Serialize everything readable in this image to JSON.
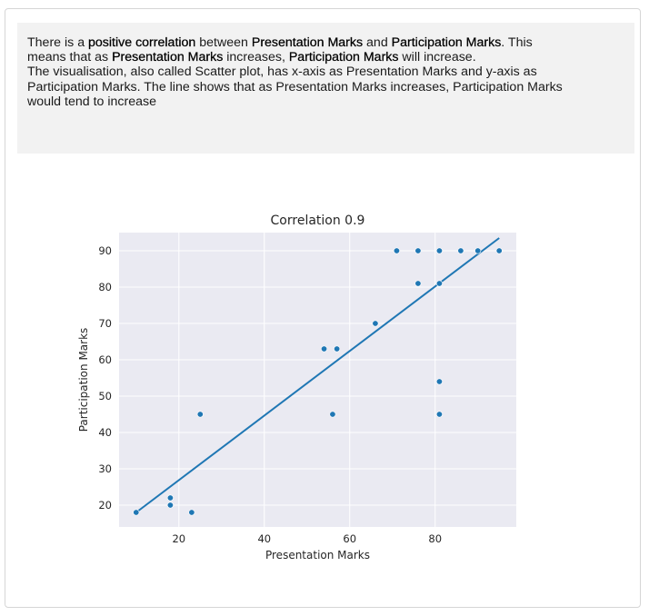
{
  "summary": {
    "line1": {
      "p1": "There is a ",
      "b1": "positive correlation",
      "p2": " between ",
      "b2": "Presentation Marks",
      "p3": " and ",
      "b3": "Participation Marks",
      "p4": ". This"
    },
    "line2": {
      "p1": "means that as ",
      "b1": "Presentation Marks",
      "p2": " increases, ",
      "b2": "Participation Marks",
      "p3": " will increase."
    },
    "line3": "The visualisation, also called Scatter plot, has x-axis as Presentation Marks and y-axis as",
    "line4": "Participation Marks. The line shows that as Presentation Marks increases, Participation Marks",
    "line5": "would tend to increase"
  },
  "colors": {
    "plot_background": "#eaeaf2",
    "gridline": "#ffffff",
    "marker": "#1f77b4",
    "trend_line": "#1f77b4",
    "text": "#262626"
  },
  "chart_data": {
    "type": "scatter",
    "title": "Correlation 0.9",
    "xlabel": "Presentation Marks",
    "ylabel": "Participation Marks",
    "xlim": [
      6,
      99
    ],
    "ylim": [
      14,
      95
    ],
    "xticks": [
      20,
      40,
      60,
      80
    ],
    "yticks": [
      20,
      30,
      40,
      50,
      60,
      70,
      80,
      90
    ],
    "grid": true,
    "points": [
      {
        "x": 10,
        "y": 18
      },
      {
        "x": 18,
        "y": 22
      },
      {
        "x": 18,
        "y": 20
      },
      {
        "x": 23,
        "y": 18
      },
      {
        "x": 25,
        "y": 45
      },
      {
        "x": 54,
        "y": 63
      },
      {
        "x": 56,
        "y": 45
      },
      {
        "x": 57,
        "y": 63
      },
      {
        "x": 66,
        "y": 70
      },
      {
        "x": 71,
        "y": 90
      },
      {
        "x": 76,
        "y": 90
      },
      {
        "x": 76,
        "y": 81
      },
      {
        "x": 81,
        "y": 90
      },
      {
        "x": 81,
        "y": 81
      },
      {
        "x": 81,
        "y": 54
      },
      {
        "x": 81,
        "y": 45
      },
      {
        "x": 86,
        "y": 90
      },
      {
        "x": 90,
        "y": 90
      },
      {
        "x": 95,
        "y": 90
      }
    ],
    "trend_line": {
      "x": [
        10,
        95
      ],
      "y": [
        18,
        93.5
      ]
    }
  }
}
